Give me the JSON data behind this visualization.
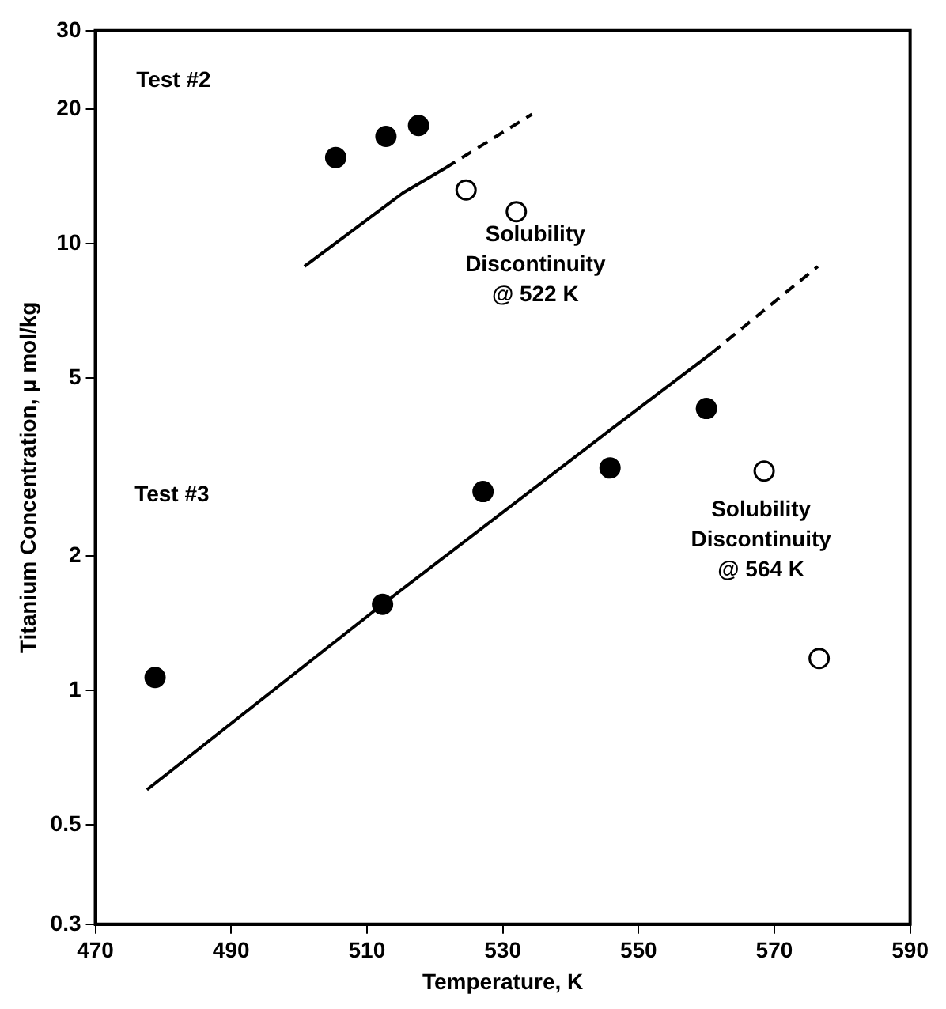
{
  "chart_data": {
    "type": "scatter",
    "xlabel": "Temperature, K",
    "ylabel": "Titanium Concentration, μ mol/kg",
    "xlim": [
      470,
      590
    ],
    "xticks": [
      470,
      490,
      510,
      530,
      550,
      570,
      590
    ],
    "ylim": [
      0.3,
      30
    ],
    "yticks": [
      0.3,
      0.5,
      1,
      2,
      5,
      10,
      20,
      30
    ],
    "log": "y",
    "grid": false,
    "legend": false,
    "marker": "circle",
    "annotations": [
      "Test #2",
      "Test #3",
      "Solubility\nDiscontinuity\n@ 522 K",
      "Solubility\nDiscontinuity\n@ 564 K"
    ],
    "series": [
      {
        "type": "scatter",
        "color": "#000000",
        "x": [
          505.4,
          512.8,
          517.6
        ],
        "values": [
          15.6,
          17.4,
          18.4
        ]
      },
      {
        "type": "scatter",
        "color": "#ffffff",
        "x": [
          524.6,
          532
        ],
        "values": [
          13.2,
          11.8
        ]
      },
      {
        "type": "line",
        "color": "#000000",
        "line_style": "solid",
        "marker": "none",
        "x": [
          500.8,
          515.3,
          521.6
        ],
        "values": [
          8.9,
          13.0,
          14.8
        ]
      },
      {
        "type": "line",
        "color": "#000000",
        "line_style": "dashed",
        "marker": "none",
        "x": [
          521.6,
          534.3
        ],
        "values": [
          14.8,
          19.5
        ]
      },
      {
        "type": "scatter",
        "color": "#000000",
        "x": [
          478.8,
          512.3,
          527.1,
          545.8,
          560
        ],
        "values": [
          1.07,
          1.56,
          2.79,
          3.15,
          4.28
        ]
      },
      {
        "type": "scatter",
        "color": "#ffffff",
        "x": [
          568.5,
          576.6
        ],
        "values": [
          3.1,
          1.18
        ]
      },
      {
        "type": "line",
        "color": "#000000",
        "line_style": "solid",
        "marker": "none",
        "x": [
          477.6,
          512.3,
          545.8,
          560.8
        ],
        "values": [
          0.6,
          1.56,
          3.83,
          5.7
        ]
      },
      {
        "type": "line",
        "color": "#000000",
        "line_style": "dashed",
        "marker": "none",
        "x": [
          560.8,
          576.4
        ],
        "values": [
          5.7,
          8.9
        ]
      }
    ]
  }
}
